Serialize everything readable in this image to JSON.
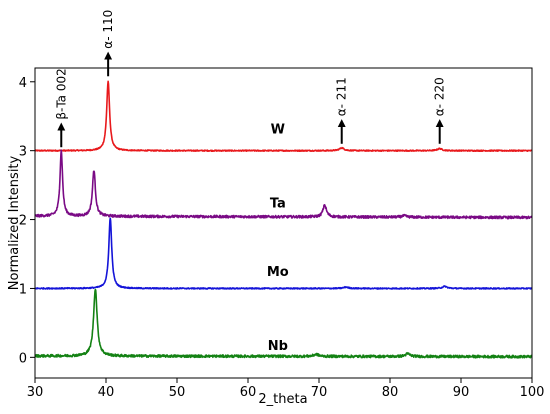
{
  "chart_data": {
    "type": "line",
    "title": "",
    "xlabel": "2_theta",
    "ylabel": "Normalized Intensity",
    "xlim": [
      30,
      100
    ],
    "ylim": [
      -0.3,
      4.2
    ],
    "xticks": [
      30,
      40,
      50,
      60,
      70,
      80,
      90,
      100
    ],
    "yticks": [
      0,
      1,
      2,
      3,
      4
    ],
    "grid": false,
    "legend": "none",
    "series": [
      {
        "name": "W",
        "color": "#e8191c",
        "baseline": 3.0,
        "label_at": [
          64.2,
          3.32
        ],
        "peaks": [
          {
            "x": 40.3,
            "height": 1.0,
            "width": 0.25
          },
          {
            "x": 73.2,
            "height": 0.04,
            "width": 0.4
          },
          {
            "x": 87.0,
            "height": 0.03,
            "width": 0.4
          }
        ]
      },
      {
        "name": "Ta",
        "color": "#7a0a85",
        "baseline": 2.05,
        "baseline_end": 2.03,
        "label_at": [
          64.2,
          2.25
        ],
        "peaks": [
          {
            "x": 33.7,
            "height": 0.95,
            "width": 0.22
          },
          {
            "x": 38.3,
            "height": 0.67,
            "width": 0.25
          },
          {
            "x": 70.8,
            "height": 0.17,
            "width": 0.3
          },
          {
            "x": 82.0,
            "height": 0.02,
            "width": 0.4
          }
        ]
      },
      {
        "name": "Mo",
        "color": "#1414d8",
        "baseline": 1.0,
        "label_at": [
          64.2,
          1.25
        ],
        "peaks": [
          {
            "x": 40.6,
            "height": 1.02,
            "width": 0.25
          },
          {
            "x": 73.8,
            "height": 0.02,
            "width": 0.4
          },
          {
            "x": 87.7,
            "height": 0.03,
            "width": 0.4
          }
        ]
      },
      {
        "name": "Nb",
        "color": "#148214",
        "baseline": 0.02,
        "baseline_end": 0.01,
        "label_at": [
          64.2,
          0.18
        ],
        "peaks": [
          {
            "x": 38.5,
            "height": 0.98,
            "width": 0.3
          },
          {
            "x": 69.6,
            "height": 0.03,
            "width": 0.4
          },
          {
            "x": 82.5,
            "height": 0.04,
            "width": 0.4
          }
        ]
      }
    ],
    "annotations": [
      {
        "text": "β-Ta 002",
        "x": 33.7,
        "y_start": 3.05,
        "y_end": 3.35,
        "label_y": 3.45
      },
      {
        "text": "α- 110",
        "x": 40.3,
        "y_start": 4.08,
        "y_end": 4.38,
        "label_y": 4.48
      },
      {
        "text": "α- 211",
        "x": 73.2,
        "y_start": 3.1,
        "y_end": 3.4,
        "label_y": 3.5
      },
      {
        "text": "α- 220",
        "x": 87.0,
        "y_start": 3.1,
        "y_end": 3.4,
        "label_y": 3.5
      }
    ]
  }
}
